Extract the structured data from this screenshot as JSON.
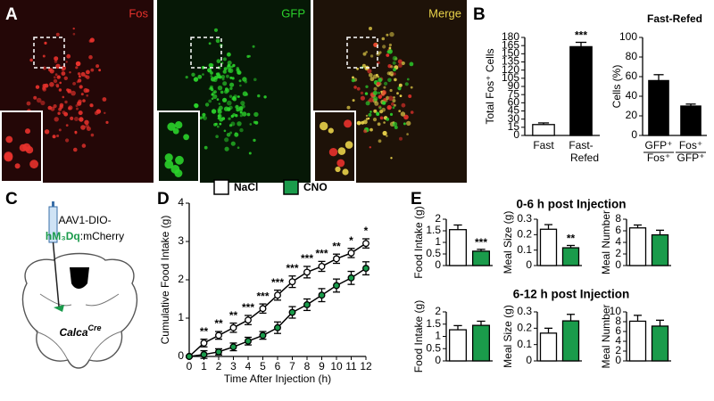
{
  "panel_labels": [
    "A",
    "B",
    "C",
    "D",
    "E"
  ],
  "micrographs": [
    {
      "label": "Fos",
      "color": "#e8322c"
    },
    {
      "label": "GFP",
      "color": "#2bd12b"
    },
    {
      "label": "Merge",
      "color": "#e8d24a"
    }
  ],
  "viral_construct": {
    "prefix": "AAV1-DIO-",
    "receptor": "hM₃Dq",
    "suffix": ":mCherry"
  },
  "mouse_line": {
    "gene": "Calca",
    "allele": "Cre"
  },
  "section_titles": [
    "0-6 h post Injection",
    "6-12 h post Injection"
  ],
  "chart_data": [
    {
      "type": "bar",
      "categories": [
        [
          "Fast"
        ],
        [
          "Fast-",
          "Refed"
        ]
      ],
      "values": [
        20,
        163
      ],
      "errors": [
        3,
        8
      ],
      "colors": [
        "#ffffff",
        "#000000"
      ],
      "ylabel": "Total Fos⁺ Cells",
      "ylim": [
        0,
        180
      ],
      "yticks": [
        0,
        15,
        30,
        45,
        60,
        75,
        90,
        105,
        120,
        135,
        150,
        165,
        180
      ],
      "annotations": [
        null,
        "***"
      ]
    },
    {
      "type": "bar",
      "title": "Fast-Refed",
      "categories": [
        [
          "GFP⁺",
          "Fos⁺"
        ],
        [
          "Fos⁺",
          "GFP⁺"
        ]
      ],
      "values": [
        56,
        30
      ],
      "errors": [
        6,
        2
      ],
      "colors": [
        "#000000",
        "#000000"
      ],
      "ylabel": "Cells (%)",
      "ylim": [
        0,
        100
      ],
      "yticks": [
        0,
        20,
        40,
        60,
        80,
        100
      ]
    },
    {
      "type": "line",
      "x": [
        0,
        1,
        2,
        3,
        4,
        5,
        6,
        7,
        8,
        9,
        10,
        11,
        12
      ],
      "series": [
        {
          "name": "NaCl",
          "color": "#ffffff",
          "values": [
            0,
            0.35,
            0.55,
            0.75,
            0.95,
            1.25,
            1.6,
            1.95,
            2.2,
            2.35,
            2.55,
            2.7,
            2.95
          ],
          "errors": [
            0.02,
            0.1,
            0.1,
            0.12,
            0.12,
            0.12,
            0.13,
            0.15,
            0.15,
            0.13,
            0.12,
            0.12,
            0.12
          ]
        },
        {
          "name": "CNO",
          "color": "#1a9b4b",
          "values": [
            0,
            0.05,
            0.12,
            0.25,
            0.4,
            0.55,
            0.75,
            1.15,
            1.35,
            1.6,
            1.85,
            2.05,
            2.3
          ],
          "errors": [
            0.02,
            0.1,
            0.08,
            0.1,
            0.1,
            0.1,
            0.15,
            0.15,
            0.15,
            0.17,
            0.17,
            0.17,
            0.17
          ]
        }
      ],
      "annotations": [
        null,
        "**",
        "**",
        "**",
        "***",
        "***",
        "***",
        "***",
        "***",
        "***",
        "**",
        "*",
        "*"
      ],
      "xlabel": "Time After Injection (h)",
      "ylabel": "Cumulative Food Intake (g)",
      "xlim": [
        0,
        12
      ],
      "ylim": [
        0,
        4
      ],
      "xticks": [
        0,
        1,
        2,
        3,
        4,
        5,
        6,
        7,
        8,
        9,
        10,
        11,
        12
      ],
      "yticks": [
        0,
        1,
        2,
        3,
        4
      ]
    },
    {
      "type": "bar",
      "values": [
        1.55,
        0.62
      ],
      "errors": [
        0.2,
        0.08
      ],
      "colors": [
        "#ffffff",
        "#1a9b4b"
      ],
      "ylabel": "Food Intake (g)",
      "ylim": [
        0,
        2
      ],
      "yticks": [
        0,
        0.5,
        1,
        1.5,
        2
      ],
      "annotations": [
        null,
        "***"
      ]
    },
    {
      "type": "bar",
      "values": [
        0.235,
        0.115
      ],
      "errors": [
        0.03,
        0.015
      ],
      "colors": [
        "#ffffff",
        "#1a9b4b"
      ],
      "ylabel": "Meal Size (g)",
      "ylim": [
        0,
        0.3
      ],
      "yticks": [
        0,
        0.1,
        0.2,
        0.3
      ],
      "annotations": [
        null,
        "**"
      ]
    },
    {
      "type": "bar",
      "values": [
        6.5,
        5.3
      ],
      "errors": [
        0.5,
        0.8
      ],
      "colors": [
        "#ffffff",
        "#1a9b4b"
      ],
      "ylabel": "Meal Number",
      "ylim": [
        0,
        8
      ],
      "yticks": [
        0,
        2,
        4,
        6,
        8
      ]
    },
    {
      "type": "bar",
      "values": [
        1.27,
        1.45
      ],
      "errors": [
        0.17,
        0.17
      ],
      "colors": [
        "#ffffff",
        "#1a9b4b"
      ],
      "ylabel": "Food Intake (g)",
      "ylim": [
        0,
        2
      ],
      "yticks": [
        0,
        0.5,
        1,
        1.5,
        2
      ]
    },
    {
      "type": "bar",
      "values": [
        0.17,
        0.245
      ],
      "errors": [
        0.03,
        0.04
      ],
      "colors": [
        "#ffffff",
        "#1a9b4b"
      ],
      "ylabel": "Meal Size (g)",
      "ylim": [
        0,
        0.3
      ],
      "yticks": [
        0,
        0.1,
        0.2,
        0.3
      ]
    },
    {
      "type": "bar",
      "values": [
        8.1,
        7.1
      ],
      "errors": [
        1.2,
        1.2
      ],
      "colors": [
        "#ffffff",
        "#1a9b4b"
      ],
      "ylabel": "Meal Number",
      "ylim": [
        0,
        10
      ],
      "yticks": [
        0,
        2,
        4,
        6,
        8,
        10
      ]
    }
  ]
}
